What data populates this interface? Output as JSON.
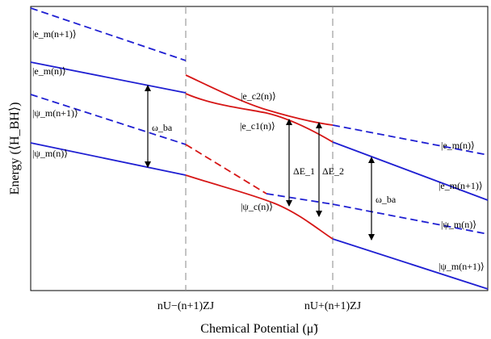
{
  "axes": {
    "xlabel": "Chemical Potential (μ̃)",
    "ylabel": "Energy (⟨H_BH⟩)",
    "ticks": [
      "nU−(n+1)ZJ",
      "nU+(n+1)ZJ"
    ]
  },
  "labels": {
    "left_em_n1": "|e_m(n+1)⟩",
    "left_em_n": "|e_m(n)⟩",
    "left_psim_n1": "|ψ_m(n+1)⟩",
    "left_psim_n": "|ψ_m(n)⟩",
    "mid_ec2": "|e_c2(n)⟩",
    "mid_ec1": "|e_c1(n)⟩",
    "mid_psic": "|ψ_c(n)⟩",
    "right_em_n": "|e_m(n)⟩",
    "right_em_n1": "|e_m(n+1)⟩",
    "right_psim_n": "|ψ_m(n)⟩",
    "right_psim_n1": "|ψ_m(n+1)⟩",
    "omega_left": "ω_ba",
    "omega_right": "ω_ba",
    "delta_e1": "ΔE_1",
    "delta_e2": "ΔE_2"
  },
  "colors": {
    "blue": "#1f1fd2",
    "red": "#d61616",
    "dash_gray": "#8a8a8a"
  }
}
